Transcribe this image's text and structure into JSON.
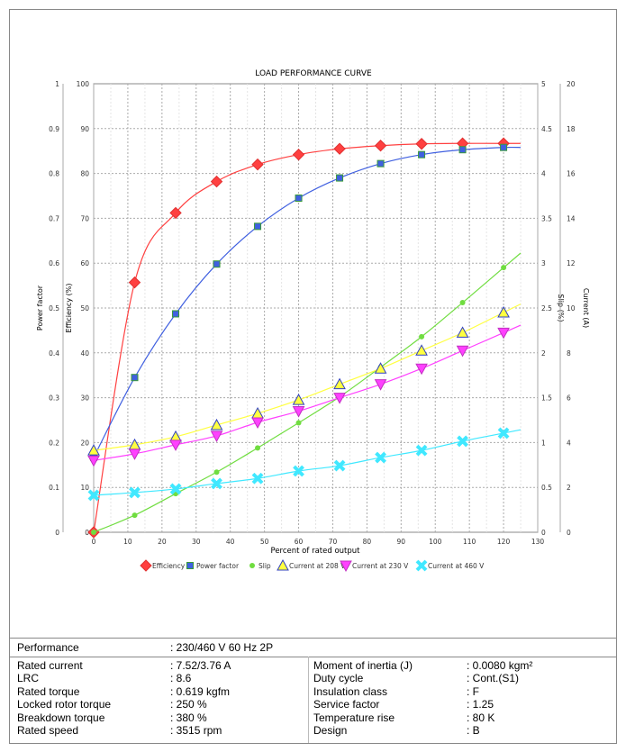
{
  "chart_data": {
    "type": "line",
    "title": "LOAD PERFORMANCE CURVE",
    "xlabel": "Percent of rated output",
    "xlim": [
      0,
      130
    ],
    "xticks": [
      "0",
      "10",
      "20",
      "30",
      "40",
      "50",
      "60",
      "70",
      "80",
      "90",
      "100",
      "110",
      "120",
      "130"
    ],
    "axes": {
      "power_factor": {
        "label": "Power factor",
        "range": [
          0,
          1
        ],
        "ticks": [
          "0",
          "0.1",
          "0.2",
          "0.3",
          "0.4",
          "0.5",
          "0.6",
          "0.7",
          "0.8",
          "0.9",
          "1"
        ]
      },
      "efficiency": {
        "label": "Efficiency (%)",
        "range": [
          0,
          100
        ],
        "ticks": [
          "0",
          "10",
          "20",
          "30",
          "40",
          "50",
          "60",
          "70",
          "80",
          "90",
          "100"
        ]
      },
      "slip": {
        "label": "Slip (%)",
        "range": [
          0,
          5
        ],
        "ticks": [
          "0",
          "0.5",
          "1",
          "1.5",
          "2",
          "2.5",
          "3",
          "3.5",
          "4",
          "4.5",
          "5"
        ]
      },
      "current": {
        "label": "Current (A)",
        "range": [
          0,
          20
        ],
        "ticks": [
          "0",
          "2",
          "4",
          "6",
          "8",
          "10",
          "12",
          "14",
          "16",
          "18",
          "20"
        ]
      }
    },
    "x": [
      0,
      12,
      24,
      36,
      48,
      60,
      72,
      84,
      96,
      108,
      120
    ],
    "series": [
      {
        "name": "Efficiency",
        "axis": "efficiency",
        "color": "#ff4040",
        "marker": "diamond",
        "values": [
          0,
          55.7,
          71.2,
          78.2,
          82.0,
          84.2,
          85.5,
          86.2,
          86.6,
          86.7,
          86.7
        ]
      },
      {
        "name": "Power factor",
        "axis": "power_factor",
        "color": "#4060e0",
        "marker": "square",
        "values": [
          0.167,
          0.345,
          0.487,
          0.598,
          0.682,
          0.745,
          0.79,
          0.822,
          0.842,
          0.853,
          0.858
        ]
      },
      {
        "name": "Slip",
        "axis": "slip",
        "color": "#70dd40",
        "marker": "circle",
        "values": [
          0,
          0.19,
          0.43,
          0.67,
          0.94,
          1.22,
          1.51,
          1.84,
          2.18,
          2.56,
          2.95
        ]
      },
      {
        "name": "Current at 208 V",
        "axis": "current",
        "color": "#ffff40",
        "marker": "triangle-up",
        "values": [
          3.65,
          3.9,
          4.26,
          4.78,
          5.3,
          5.9,
          6.6,
          7.3,
          8.1,
          8.9,
          9.8
        ]
      },
      {
        "name": "Current at 230 V",
        "axis": "current",
        "color": "#ff40ff",
        "marker": "triangle-down",
        "values": [
          3.2,
          3.5,
          3.9,
          4.3,
          4.9,
          5.4,
          6.0,
          6.6,
          7.3,
          8.1,
          8.9
        ]
      },
      {
        "name": "Current at 460 V",
        "axis": "current",
        "color": "#40e8ff",
        "marker": "x",
        "values": [
          1.65,
          1.77,
          1.93,
          2.17,
          2.4,
          2.73,
          2.97,
          3.33,
          3.65,
          4.06,
          4.42
        ]
      }
    ]
  },
  "table": {
    "performance": {
      "label": "Performance",
      "value": ": 230/460 V 60 Hz 2P"
    },
    "left": [
      {
        "label": "Rated current",
        "value": ": 7.52/3.76 A"
      },
      {
        "label": "LRC",
        "value": ": 8.6"
      },
      {
        "label": "Rated torque",
        "value": ": 0.619 kgfm"
      },
      {
        "label": "Locked rotor torque",
        "value": ": 250 %"
      },
      {
        "label": "Breakdown torque",
        "value": ": 380 %"
      },
      {
        "label": "Rated speed",
        "value": ": 3515 rpm"
      }
    ],
    "right": [
      {
        "label": "Moment of inertia (J)",
        "value": ": 0.0080 kgm²"
      },
      {
        "label": "Duty cycle",
        "value": ": Cont.(S1)"
      },
      {
        "label": "Insulation class",
        "value": ": F"
      },
      {
        "label": "Service factor",
        "value": ": 1.25"
      },
      {
        "label": "Temperature rise",
        "value": ": 80 K"
      },
      {
        "label": "Design",
        "value": ": B"
      }
    ]
  }
}
